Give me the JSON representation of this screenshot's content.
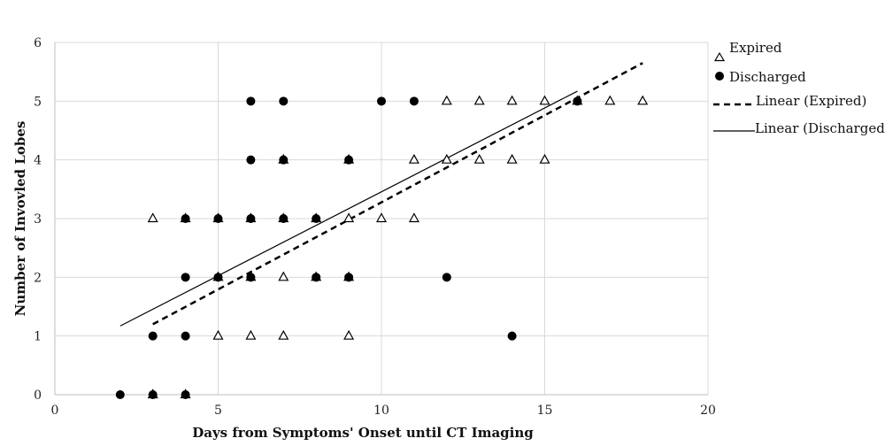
{
  "chart_data": {
    "type": "scatter",
    "title": "",
    "xlabel": "Days from Symptoms' Onset until CT Imaging",
    "ylabel": "Number of Invovled Lobes",
    "xlim": [
      0,
      20
    ],
    "ylim": [
      0,
      6
    ],
    "xticks": [
      0,
      5,
      10,
      15,
      20
    ],
    "yticks": [
      0,
      1,
      2,
      3,
      4,
      5,
      6
    ],
    "grid": true,
    "legend_position": "right",
    "series": [
      {
        "name": "Expired",
        "marker": "open-triangle",
        "color": "#000000",
        "points": [
          [
            3,
            0
          ],
          [
            4,
            0
          ],
          [
            5,
            1
          ],
          [
            6,
            1
          ],
          [
            7,
            1
          ],
          [
            9,
            1
          ],
          [
            5,
            2
          ],
          [
            6,
            2
          ],
          [
            7,
            2
          ],
          [
            8,
            2
          ],
          [
            9,
            2
          ],
          [
            3,
            3
          ],
          [
            4,
            3
          ],
          [
            5,
            3
          ],
          [
            6,
            3
          ],
          [
            7,
            3
          ],
          [
            8,
            3
          ],
          [
            9,
            3
          ],
          [
            10,
            3
          ],
          [
            11,
            3
          ],
          [
            7,
            4
          ],
          [
            9,
            4
          ],
          [
            11,
            4
          ],
          [
            12,
            4
          ],
          [
            13,
            4
          ],
          [
            14,
            4
          ],
          [
            15,
            4
          ],
          [
            12,
            5
          ],
          [
            13,
            5
          ],
          [
            14,
            5
          ],
          [
            15,
            5
          ],
          [
            16,
            5
          ],
          [
            17,
            5
          ],
          [
            18,
            5
          ]
        ]
      },
      {
        "name": "Discharged",
        "marker": "filled-circle",
        "color": "#000000",
        "points": [
          [
            2,
            0
          ],
          [
            3,
            0
          ],
          [
            4,
            0
          ],
          [
            3,
            1
          ],
          [
            4,
            1
          ],
          [
            14,
            1
          ],
          [
            4,
            2
          ],
          [
            5,
            2
          ],
          [
            6,
            2
          ],
          [
            8,
            2
          ],
          [
            9,
            2
          ],
          [
            12,
            2
          ],
          [
            4,
            3
          ],
          [
            5,
            3
          ],
          [
            6,
            3
          ],
          [
            7,
            3
          ],
          [
            8,
            3
          ],
          [
            6,
            4
          ],
          [
            7,
            4
          ],
          [
            9,
            4
          ],
          [
            6,
            5
          ],
          [
            7,
            5
          ],
          [
            10,
            5
          ],
          [
            11,
            5
          ],
          [
            16,
            5
          ]
        ]
      }
    ],
    "trendlines": [
      {
        "name": "Linear (Expired)",
        "style": "dashed",
        "from": [
          3,
          1.2
        ],
        "to": [
          18,
          5.65
        ]
      },
      {
        "name": "Linear (Discharged)",
        "style": "solid",
        "from": [
          2,
          1.17
        ],
        "to": [
          16,
          5.17
        ]
      }
    ]
  }
}
